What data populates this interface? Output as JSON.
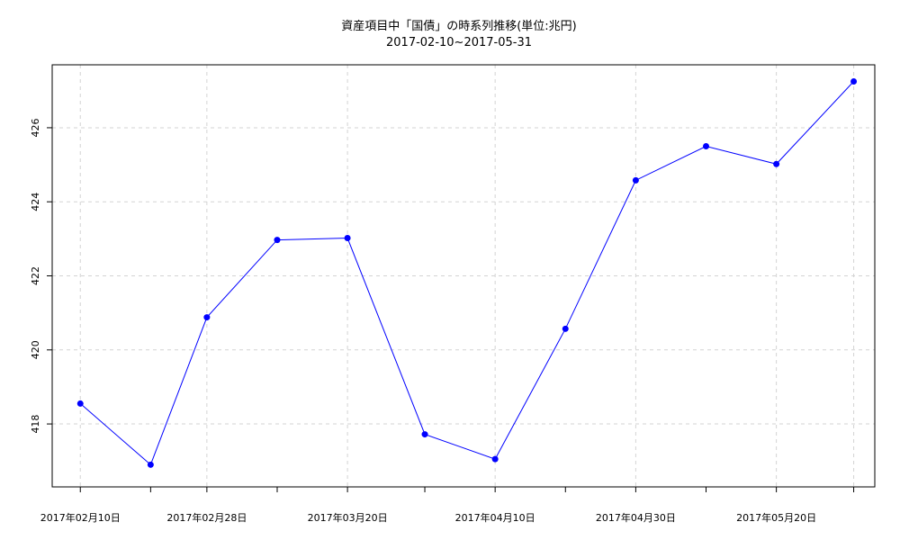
{
  "chart_data": {
    "type": "line",
    "title": "資産項目中「国債」の時系列推移(単位:兆円)",
    "subtitle": "2017-02-10~2017-05-31",
    "xlabel": "",
    "ylabel": "",
    "x": [
      "2017-02-10",
      "2017-02-20",
      "2017-02-28",
      "2017-03-10",
      "2017-03-20",
      "2017-03-31",
      "2017-04-10",
      "2017-04-20",
      "2017-04-30",
      "2017-05-10",
      "2017-05-20",
      "2017-05-31"
    ],
    "xlim": [
      "2017-02-06",
      "2017-06-03"
    ],
    "x_tick_labels": [
      {
        "date": "2017-02-10",
        "label": "2017年02月10日"
      },
      {
        "date": "2017-02-28",
        "label": "2017年02月28日"
      },
      {
        "date": "2017-03-20",
        "label": "2017年03月20日"
      },
      {
        "date": "2017-04-10",
        "label": "2017年04月10日"
      },
      {
        "date": "2017-04-30",
        "label": "2017年04月30日"
      },
      {
        "date": "2017-05-20",
        "label": "2017年05月20日"
      }
    ],
    "x_gridlines": [
      "2017-02-10",
      "2017-02-28",
      "2017-03-20",
      "2017-04-10",
      "2017-04-30",
      "2017-05-20",
      "2017-05-31"
    ],
    "series": [
      {
        "values": [
          418.55,
          416.9,
          420.88,
          422.97,
          423.02,
          417.72,
          417.05,
          420.57,
          424.58,
          425.5,
          425.02,
          427.25
        ]
      }
    ],
    "ylim": [
      416.3,
      427.7
    ],
    "y_ticks": [
      418,
      420,
      422,
      424,
      426
    ],
    "grid": true,
    "line_color": "#0000ff",
    "grid_color": "#d3d3d3"
  }
}
